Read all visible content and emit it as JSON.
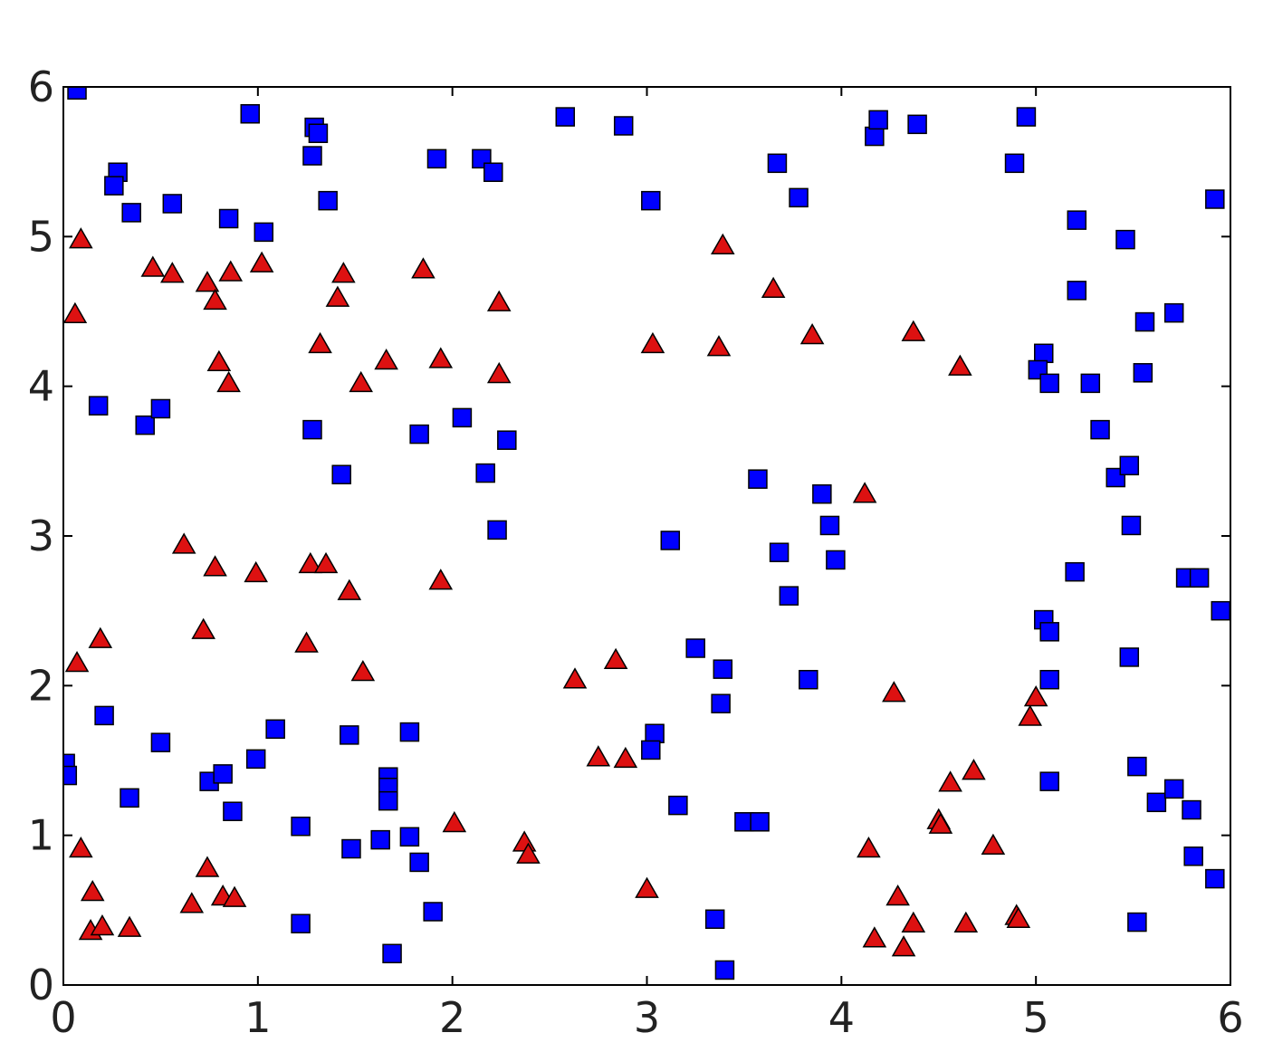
{
  "chart_data": {
    "type": "scatter",
    "xlim": [
      0,
      6
    ],
    "ylim": [
      0,
      6
    ],
    "xticks": [
      0,
      1,
      2,
      3,
      4,
      5,
      6
    ],
    "yticks": [
      0,
      1,
      2,
      3,
      4,
      5,
      6
    ],
    "series": [
      {
        "color": "#0000ff",
        "marker": "square",
        "x": [
          0.07,
          0.96,
          0.28,
          0.26,
          0.35,
          0.56,
          0.85,
          1.03,
          1.29,
          1.31,
          1.28,
          1.36,
          1.92,
          2.15,
          2.21,
          2.58,
          2.88,
          3.02,
          3.67,
          3.78,
          4.17,
          4.19,
          4.39,
          4.89,
          4.95,
          5.92,
          5.21,
          5.46,
          5.21,
          5.56,
          5.71,
          5.04,
          5.01,
          5.07,
          5.28,
          5.55,
          5.33,
          5.41,
          5.48,
          5.49,
          5.2,
          5.77,
          5.84,
          5.95,
          5.04,
          5.07,
          5.07,
          5.48,
          5.52,
          5.07,
          5.62,
          5.71,
          5.8,
          5.81,
          5.92,
          5.52,
          0.18,
          0.42,
          0.5,
          1.28,
          1.43,
          1.83,
          2.05,
          2.17,
          2.28,
          2.23,
          3.57,
          3.9,
          3.94,
          3.68,
          3.97,
          3.12,
          3.73,
          3.25,
          3.39,
          3.38,
          3.83,
          3.04,
          3.02,
          3.16,
          3.5,
          3.58,
          3.35,
          3.4,
          0.01,
          0.02,
          0.21,
          0.34,
          0.5,
          0.75,
          0.82,
          0.87,
          0.99,
          1.09,
          1.22,
          1.22,
          1.47,
          1.48,
          1.63,
          1.67,
          1.67,
          1.67,
          1.78,
          1.78,
          1.83,
          1.9,
          1.69
        ],
        "y": [
          5.98,
          5.82,
          5.43,
          5.34,
          5.16,
          5.22,
          5.12,
          5.03,
          5.73,
          5.69,
          5.54,
          5.24,
          5.52,
          5.52,
          5.43,
          5.8,
          5.74,
          5.24,
          5.49,
          5.26,
          5.67,
          5.78,
          5.75,
          5.49,
          5.8,
          5.25,
          5.11,
          4.98,
          4.64,
          4.43,
          4.49,
          4.22,
          4.11,
          4.02,
          4.02,
          4.09,
          3.71,
          3.39,
          3.47,
          3.07,
          2.76,
          2.72,
          2.72,
          2.5,
          2.44,
          2.36,
          2.04,
          2.19,
          1.46,
          1.36,
          1.22,
          1.31,
          1.17,
          0.86,
          0.71,
          0.42,
          3.87,
          3.74,
          3.85,
          3.71,
          3.41,
          3.68,
          3.79,
          3.42,
          3.64,
          3.04,
          3.38,
          3.28,
          3.07,
          2.89,
          2.84,
          2.97,
          2.6,
          2.25,
          2.11,
          1.88,
          2.04,
          1.68,
          1.57,
          1.2,
          1.09,
          1.09,
          0.44,
          0.1,
          1.48,
          1.4,
          1.8,
          1.25,
          1.62,
          1.36,
          1.41,
          1.16,
          1.51,
          1.71,
          1.06,
          0.41,
          1.67,
          0.91,
          0.97,
          1.39,
          1.32,
          1.23,
          1.69,
          0.99,
          0.82,
          0.49,
          0.21
        ]
      },
      {
        "color": "#dd1111",
        "marker": "triangle",
        "x": [
          0.09,
          0.06,
          0.46,
          0.56,
          0.74,
          0.78,
          0.86,
          1.02,
          0.8,
          0.85,
          1.32,
          1.41,
          1.44,
          1.53,
          1.66,
          1.85,
          1.94,
          2.24,
          2.24,
          3.03,
          3.37,
          3.39,
          3.65,
          3.85,
          4.37,
          4.61,
          4.12,
          0.62,
          0.78,
          0.99,
          0.72,
          1.27,
          1.35,
          1.47,
          1.94,
          1.25,
          1.54,
          0.07,
          0.19,
          0.09,
          0.15,
          0.14,
          0.2,
          0.34,
          0.66,
          0.74,
          0.82,
          0.88,
          2.01,
          2.37,
          2.39,
          2.63,
          2.84,
          2.75,
          2.89,
          3.0,
          4.27,
          5.0,
          4.97,
          4.56,
          4.68,
          4.5,
          4.51,
          4.78,
          4.14,
          4.29,
          4.17,
          4.37,
          4.32,
          4.64,
          4.9,
          4.91
        ],
        "y": [
          4.98,
          4.48,
          4.79,
          4.75,
          4.69,
          4.57,
          4.76,
          4.82,
          4.16,
          4.02,
          4.28,
          4.59,
          4.75,
          4.02,
          4.17,
          4.78,
          4.18,
          4.56,
          4.08,
          4.28,
          4.26,
          4.94,
          4.65,
          4.34,
          4.36,
          4.13,
          3.28,
          2.94,
          2.79,
          2.75,
          2.37,
          2.81,
          2.81,
          2.63,
          2.7,
          2.28,
          2.09,
          2.15,
          2.31,
          0.91,
          0.62,
          0.36,
          0.39,
          0.38,
          0.54,
          0.78,
          0.59,
          0.58,
          1.08,
          0.95,
          0.87,
          2.04,
          2.17,
          1.52,
          1.51,
          0.64,
          1.95,
          1.92,
          1.79,
          1.35,
          1.43,
          1.1,
          1.07,
          0.93,
          0.91,
          0.59,
          0.31,
          0.41,
          0.25,
          0.41,
          0.46,
          0.44
        ]
      }
    ]
  }
}
